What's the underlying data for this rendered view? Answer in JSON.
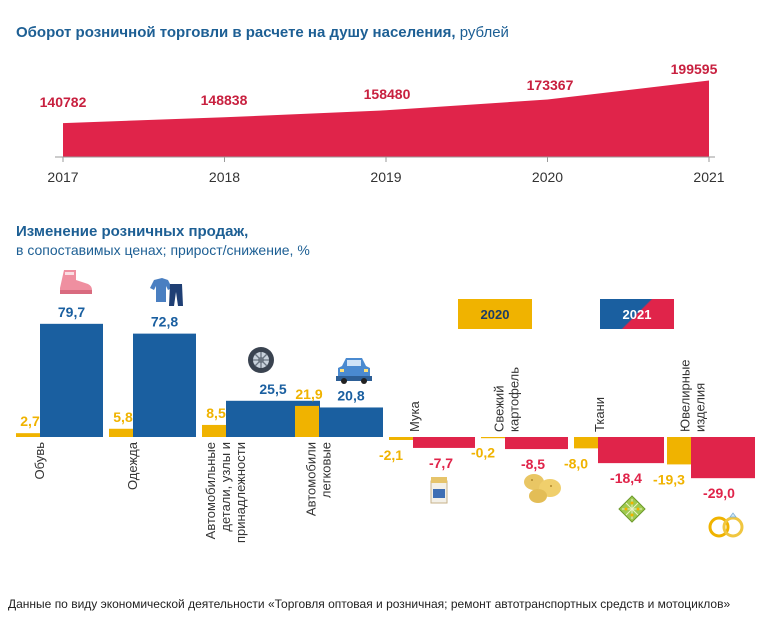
{
  "title_top": {
    "main": "Оборот розничной торговли в расчете на душу населения,",
    "unit": " рублей"
  },
  "title_bottom": {
    "line1": "Изменение розничных продаж,",
    "line2": "в сопоставимых ценах; прирост/снижение, %"
  },
  "legend": {
    "y2020": "2020",
    "y2021": "2021"
  },
  "footnote": "Данные по виду экономической деятельности «Торговля оптовая и розничная; ремонт автотранспортных средств и мотоциклов»",
  "colors": {
    "red": "#e0244a",
    "blue": "#1a5fa0",
    "yellow": "#f0b300",
    "title": "#1d5f94",
    "darkred": "#c8203f"
  },
  "chart_data": [
    {
      "type": "area",
      "title": "Оборот розничной торговли в расчете на душу населения, рублей",
      "x": [
        "2017",
        "2018",
        "2019",
        "2020",
        "2021"
      ],
      "values": [
        140782,
        148838,
        158480,
        173367,
        199595
      ],
      "labels": [
        "140782",
        "148838",
        "158480",
        "173367",
        "199595"
      ]
    },
    {
      "type": "bar",
      "title": "Изменение розничных продаж, в сопоставимых ценах; прирост/снижение, %",
      "categories": [
        "Обувь",
        "Одежда",
        "Автомобильные детали, узлы и принадлежности",
        "Автомобили легковые",
        "Мука",
        "Свежий картофель",
        "Ткани",
        "Ювелирные изделия"
      ],
      "category_lines": [
        [
          "Обувь"
        ],
        [
          "Одежда"
        ],
        [
          "Автомобильные",
          "детали, узлы и",
          "принадлежности"
        ],
        [
          "Автомобили",
          "легковые"
        ],
        [
          "Мука"
        ],
        [
          "Свежий",
          "картофель"
        ],
        [
          "Ткани"
        ],
        [
          "Ювелирные",
          "изделия"
        ]
      ],
      "series": [
        {
          "name": "2020",
          "values": [
            2.7,
            5.8,
            8.5,
            21.9,
            -2.1,
            -0.2,
            -8.0,
            -19.3
          ],
          "labels": [
            "2,7",
            "5,8",
            "8,5",
            "21,9",
            "-2,1",
            "-0,2",
            "-8,0",
            "-19,3"
          ]
        },
        {
          "name": "2021",
          "values": [
            79.7,
            72.8,
            25.5,
            20.8,
            -7.7,
            -8.5,
            -18.4,
            -29.0
          ],
          "labels": [
            "79,7",
            "72,8",
            "25,5",
            "20,8",
            "-7,7",
            "-8,5",
            "-18,4",
            "-29,0"
          ]
        }
      ],
      "icons": [
        "shoe-icon",
        "clothes-icon",
        "wheel-icon",
        "car-icon",
        "flour-icon",
        "potato-icon",
        "fabric-icon",
        "rings-icon"
      ]
    }
  ]
}
